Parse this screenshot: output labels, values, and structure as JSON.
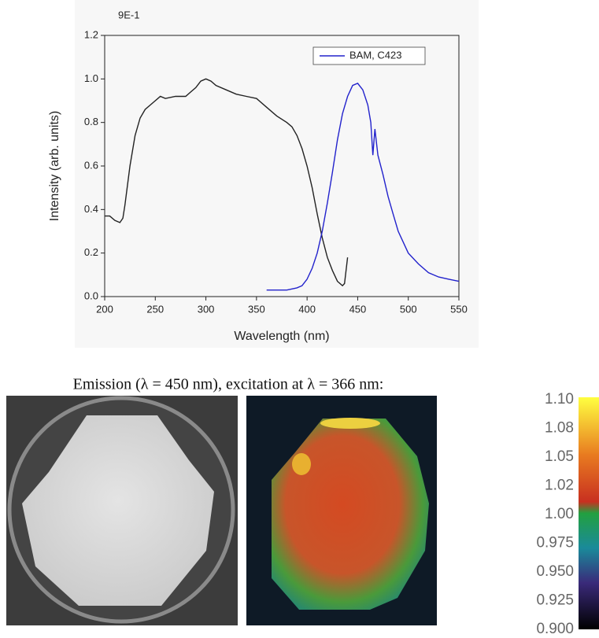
{
  "chart_data": {
    "type": "line",
    "annotation": "9E-1",
    "xlabel": "Wavelength (nm)",
    "ylabel": "Intensity (arb. units)",
    "xlim": [
      200,
      550
    ],
    "ylim": [
      0,
      1.2
    ],
    "xticks": [
      200,
      250,
      300,
      350,
      400,
      450,
      500,
      550
    ],
    "yticks": [
      {
        "value": 0,
        "label": "0.0"
      },
      0.2,
      0.4,
      0.6,
      0.8,
      {
        "value": 1,
        "label": "1.0"
      },
      1.2
    ],
    "legend": "upper right",
    "series": [
      {
        "color": "#222222",
        "x": [
          200,
          205,
          210,
          215,
          218,
          220,
          225,
          230,
          235,
          240,
          245,
          250,
          255,
          260,
          270,
          280,
          285,
          290,
          295,
          300,
          305,
          310,
          320,
          330,
          340,
          350,
          360,
          370,
          380,
          385,
          390,
          395,
          400,
          405,
          410,
          415,
          420,
          425,
          430,
          435,
          437,
          440
        ],
        "values": [
          0.37,
          0.37,
          0.35,
          0.34,
          0.36,
          0.42,
          0.6,
          0.74,
          0.82,
          0.86,
          0.88,
          0.9,
          0.92,
          0.91,
          0.92,
          0.92,
          0.94,
          0.96,
          0.99,
          1.0,
          0.99,
          0.97,
          0.95,
          0.93,
          0.92,
          0.91,
          0.87,
          0.83,
          0.8,
          0.78,
          0.74,
          0.68,
          0.6,
          0.5,
          0.38,
          0.27,
          0.18,
          0.12,
          0.07,
          0.05,
          0.06,
          0.18
        ]
      },
      {
        "name": "BAM, C423",
        "color": "#2222cc",
        "x": [
          360,
          380,
          390,
          395,
          400,
          405,
          410,
          415,
          420,
          425,
          430,
          435,
          440,
          445,
          450,
          455,
          460,
          463,
          465,
          467,
          470,
          475,
          480,
          485,
          490,
          500,
          510,
          520,
          530,
          540,
          550
        ],
        "values": [
          0.03,
          0.03,
          0.04,
          0.05,
          0.08,
          0.13,
          0.2,
          0.3,
          0.43,
          0.57,
          0.72,
          0.84,
          0.92,
          0.97,
          0.98,
          0.95,
          0.88,
          0.8,
          0.65,
          0.77,
          0.65,
          0.56,
          0.46,
          0.38,
          0.3,
          0.2,
          0.15,
          0.11,
          0.09,
          0.08,
          0.07
        ]
      }
    ]
  },
  "caption": "Emission (λ = 450 nm), excitation at λ = 366 nm:",
  "colorbar": {
    "labels": [
      "1.10",
      "1.08",
      "1.05",
      "1.02",
      "1.00",
      "0.975",
      "0.950",
      "0.925",
      "0.900"
    ]
  }
}
